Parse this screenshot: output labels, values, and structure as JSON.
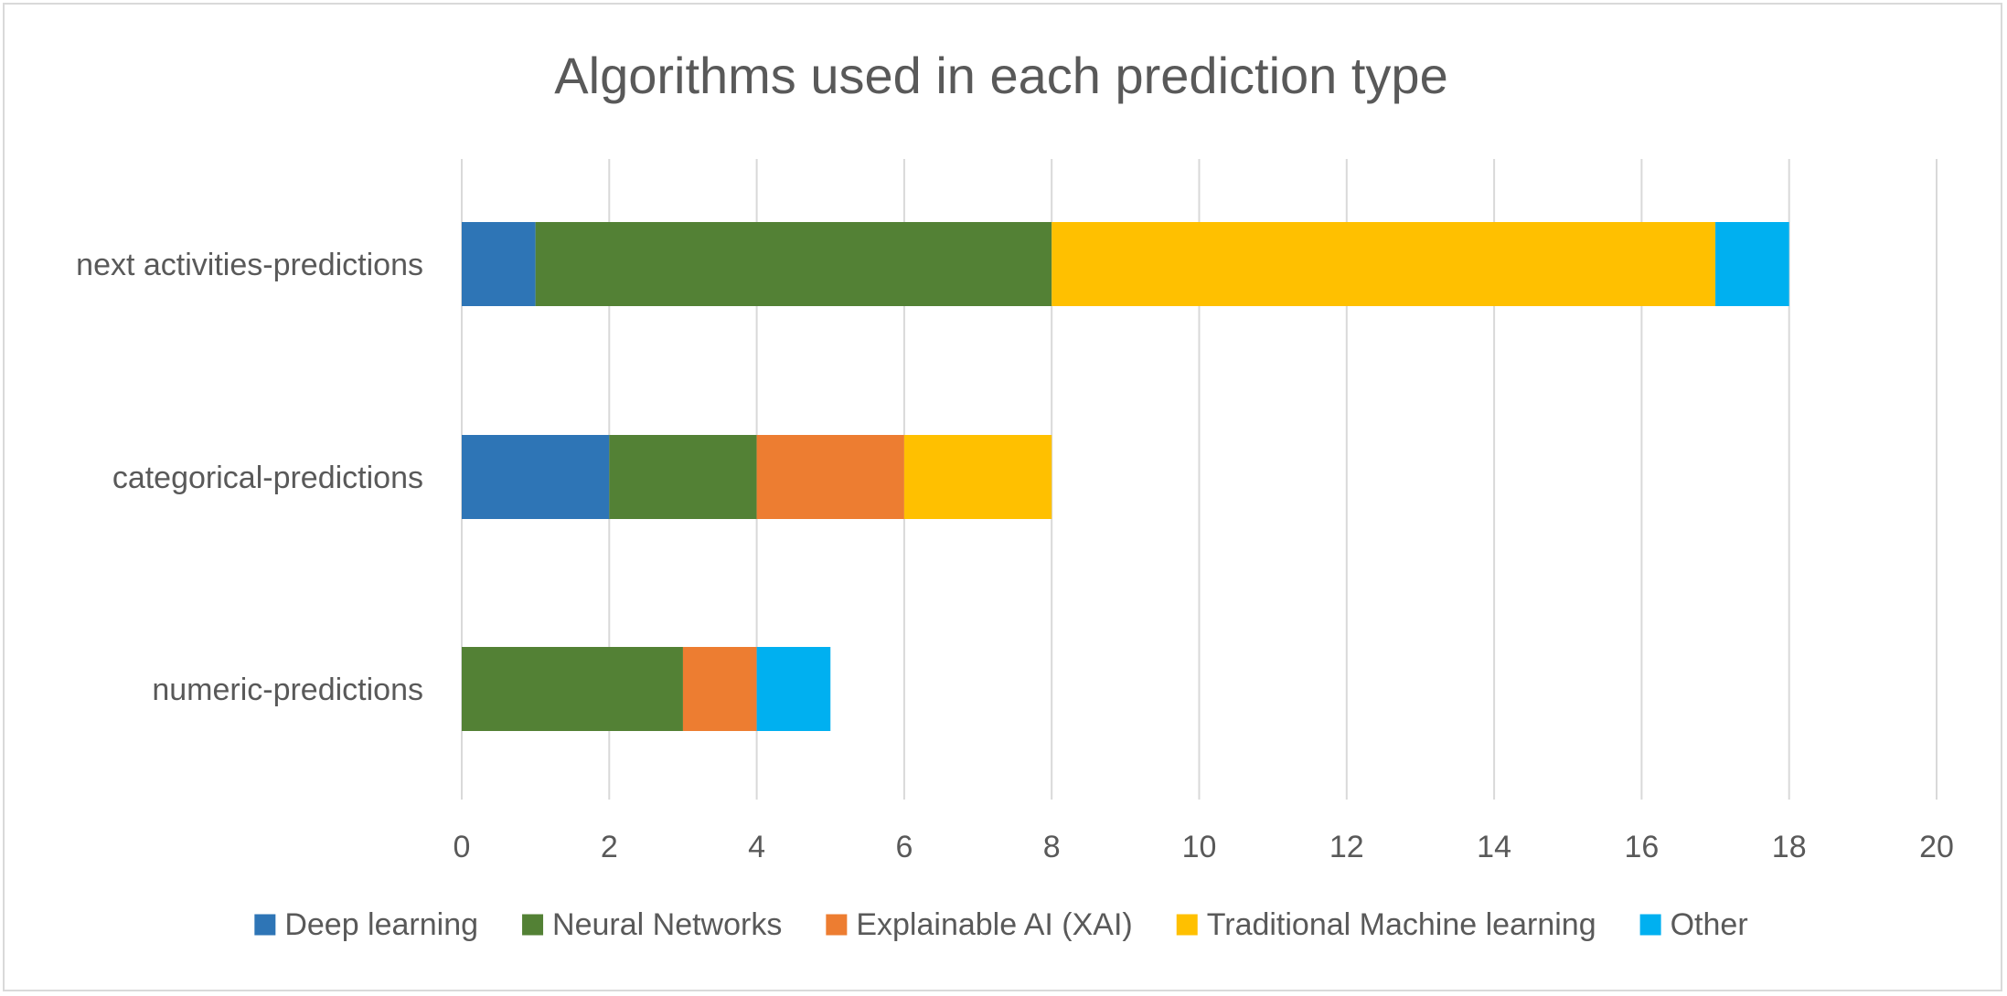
{
  "chart_data": {
    "type": "bar",
    "orientation": "horizontal",
    "stacked": true,
    "title": "Algorithms used in each prediction type",
    "xlabel": "",
    "ylabel": "",
    "categories": [
      "next activities-predictions",
      "categorical-predictions",
      "numeric-predictions"
    ],
    "series": [
      {
        "name": "Deep learning",
        "color": "#2e75b6",
        "values": [
          1,
          2,
          0
        ]
      },
      {
        "name": "Neural Networks",
        "color": "#538135",
        "values": [
          7,
          2,
          3
        ]
      },
      {
        "name": "Explainable AI (XAI)",
        "color": "#ed7d31",
        "values": [
          0,
          2,
          1
        ]
      },
      {
        "name": "Traditional Machine learning",
        "color": "#ffc000",
        "values": [
          9,
          2,
          0
        ]
      },
      {
        "name": "Other",
        "color": "#00b0f0",
        "values": [
          1,
          0,
          1
        ]
      }
    ],
    "xlim": [
      0,
      20
    ],
    "xticks": [
      "0",
      "2",
      "4",
      "6",
      "8",
      "10",
      "12",
      "14",
      "16",
      "18",
      "20"
    ],
    "grid": "vertical",
    "legend_position": "bottom"
  }
}
